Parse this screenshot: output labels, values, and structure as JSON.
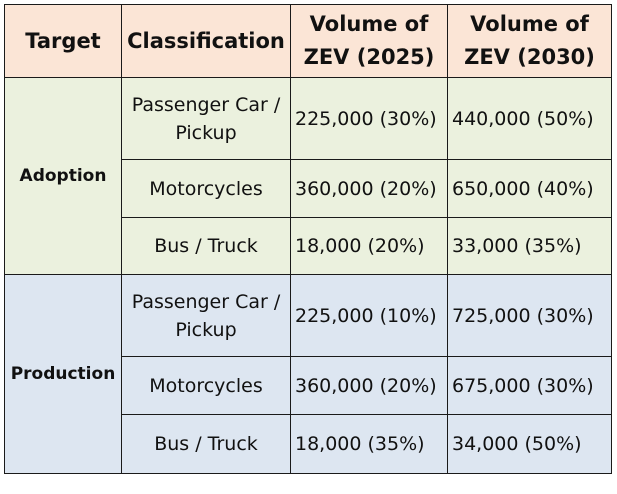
{
  "table": {
    "headers": [
      {
        "key": "target",
        "label": "Target"
      },
      {
        "key": "classification",
        "label": "Classification"
      },
      {
        "key": "zev_2025",
        "label": "Volume of ZEV (2025)"
      },
      {
        "key": "zev_2030",
        "label": "Volume of ZEV (2030)"
      }
    ],
    "groups": [
      {
        "target": "Adoption",
        "colors": {
          "background": "#ebf1de"
        },
        "rows": [
          {
            "classification": "Passenger Car / Pickup",
            "zev_2025": "225,000 (30%)",
            "zev_2030": "440,000 (50%)"
          },
          {
            "classification": "Motorcycles",
            "zev_2025": "360,000 (20%)",
            "zev_2030": "650,000 (40%)"
          },
          {
            "classification": "Bus / Truck",
            "zev_2025": "18,000 (20%)",
            "zev_2030": "33,000 (35%)"
          }
        ]
      },
      {
        "target": "Production",
        "colors": {
          "background": "#dde6f1"
        },
        "rows": [
          {
            "classification": "Passenger Car / Pickup",
            "zev_2025": "225,000 (10%)",
            "zev_2030": "725,000 (30%)"
          },
          {
            "classification": "Motorcycles",
            "zev_2025": "360,000 (20%)",
            "zev_2030": "675,000 (30%)"
          },
          {
            "classification": "Bus / Truck",
            "zev_2025": "18,000 (35%)",
            "zev_2030": "34,000 (50%)"
          }
        ]
      }
    ],
    "colors": {
      "header_background": "#fbe5d6",
      "border": "#1a1a1a"
    }
  }
}
